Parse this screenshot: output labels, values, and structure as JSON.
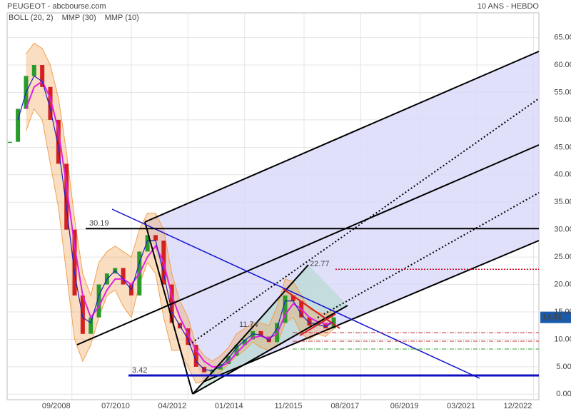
{
  "chart_data": {
    "type": "stock",
    "title": "PEUGEOT - abcbourse.com",
    "subtitle": "10 ANS - HEBDO",
    "x": [
      "2006-10",
      "2007-01",
      "2007-04",
      "2007-07",
      "2007-10",
      "2008-01",
      "2008-04",
      "2008-07",
      "2008-10",
      "2009-01",
      "2009-04",
      "2009-07",
      "2009-10",
      "2010-01",
      "2010-04",
      "2010-07",
      "2010-10",
      "2011-01",
      "2011-04",
      "2011-07",
      "2011-10",
      "2012-01",
      "2012-04",
      "2012-07",
      "2012-10",
      "2013-01",
      "2013-04",
      "2013-07",
      "2013-10",
      "2014-01",
      "2014-04",
      "2014-07",
      "2014-10",
      "2015-01",
      "2015-04",
      "2015-07",
      "2015-10",
      "2016-01",
      "2016-04",
      "2016-07",
      "2016-10"
    ],
    "price": {
      "up_color": "#2a9a2a",
      "down_color": "#d42020",
      "values": [
        46,
        52,
        58,
        60,
        56,
        50,
        42,
        30,
        18,
        11,
        14,
        20,
        22,
        23,
        20,
        18,
        26,
        29,
        28,
        20,
        13,
        12,
        9,
        5,
        4,
        4.5,
        5.5,
        7,
        9,
        10,
        11.5,
        10.5,
        9.5,
        13,
        18,
        17,
        14,
        12.5,
        13,
        12,
        14.01
      ]
    },
    "series": [
      {
        "name": "BOLL (20, 2)",
        "color": "#f0a050",
        "upper": [
          null,
          null,
          62,
          64,
          63,
          60,
          54,
          44,
          32,
          22,
          18,
          24,
          26,
          27,
          26,
          25,
          30,
          33,
          33,
          30,
          22,
          17,
          14,
          9,
          7,
          6,
          7,
          8.5,
          11,
          12,
          13,
          13,
          12.5,
          16,
          21,
          20.5,
          18,
          15.5,
          15,
          14.5,
          15.5
        ],
        "lower": [
          null,
          null,
          48,
          52,
          50,
          42,
          34,
          22,
          10,
          6,
          9,
          14,
          18,
          19,
          16,
          14,
          20,
          24,
          22,
          14,
          8,
          8,
          5,
          2,
          2.5,
          3,
          4,
          5.5,
          7,
          8,
          9.5,
          8.5,
          8,
          9,
          13,
          14,
          11,
          10,
          11,
          10.5,
          12
        ]
      },
      {
        "name": "MMP (30)",
        "color": "#e020e0",
        "values": [
          null,
          null,
          52,
          56,
          57,
          54,
          48,
          38,
          27,
          18,
          14,
          16,
          19,
          21,
          21,
          20,
          22,
          25,
          27,
          24,
          18,
          14,
          11,
          8,
          6,
          5,
          5,
          5.8,
          7.5,
          9,
          10.3,
          10.6,
          10.2,
          11,
          14.5,
          16.5,
          15.5,
          14,
          13.2,
          12.8,
          13
        ]
      },
      {
        "name": "MMP (10)",
        "color": "#2020c0",
        "values": [
          null,
          50,
          55,
          58,
          57,
          52,
          45,
          34,
          22,
          14,
          13,
          18,
          21,
          22.5,
          21,
          19,
          24,
          28,
          28,
          22,
          15,
          12.5,
          10,
          6,
          4.5,
          4.3,
          5,
          6.5,
          8.5,
          9.8,
          11,
          10.8,
          9.8,
          12,
          17,
          17,
          14.5,
          13,
          12.8,
          12.3,
          13.2
        ]
      }
    ],
    "levels": [
      {
        "value": 30.19,
        "color": "#000000"
      },
      {
        "value": 3.42,
        "color": "#1010c0"
      },
      {
        "value": 22.77,
        "color": "#d00020"
      },
      {
        "value": 11.74,
        "color": "#d00020"
      }
    ],
    "price_tag": 14.01,
    "xlim": [
      "2006-09",
      "2023-02"
    ],
    "xticks": [
      {
        "value": "2008-09",
        "label": "09/2008"
      },
      {
        "value": "2010-07",
        "label": "07/2010"
      },
      {
        "value": "2012-04",
        "label": "04/2012"
      },
      {
        "value": "2014-01",
        "label": "01/2014"
      },
      {
        "value": "2015-11",
        "label": "11/2015"
      },
      {
        "value": "2017-08",
        "label": "08/2017"
      },
      {
        "value": "2019-06",
        "label": "06/2019"
      },
      {
        "value": "2021-03",
        "label": "03/2021"
      },
      {
        "value": "2022-12",
        "label": "12/2022"
      }
    ],
    "ylim": [
      -1,
      69.5
    ],
    "yticks": [
      {
        "value": 0,
        "label": "0.00"
      },
      {
        "value": 5,
        "label": "5.00"
      },
      {
        "value": 10,
        "label": "10.00"
      },
      {
        "value": 15,
        "label": "15.00"
      },
      {
        "value": 20,
        "label": "20.00"
      },
      {
        "value": 25,
        "label": "25.00"
      },
      {
        "value": 30,
        "label": "30.00"
      },
      {
        "value": 35,
        "label": "35.00"
      },
      {
        "value": 40,
        "label": "40.00"
      },
      {
        "value": 45,
        "label": "45.00"
      },
      {
        "value": 50,
        "label": "50.00"
      },
      {
        "value": 55,
        "label": "55.00"
      },
      {
        "value": 60,
        "label": "60.00"
      },
      {
        "value": 65,
        "label": "65.00"
      }
    ],
    "grid": true
  }
}
